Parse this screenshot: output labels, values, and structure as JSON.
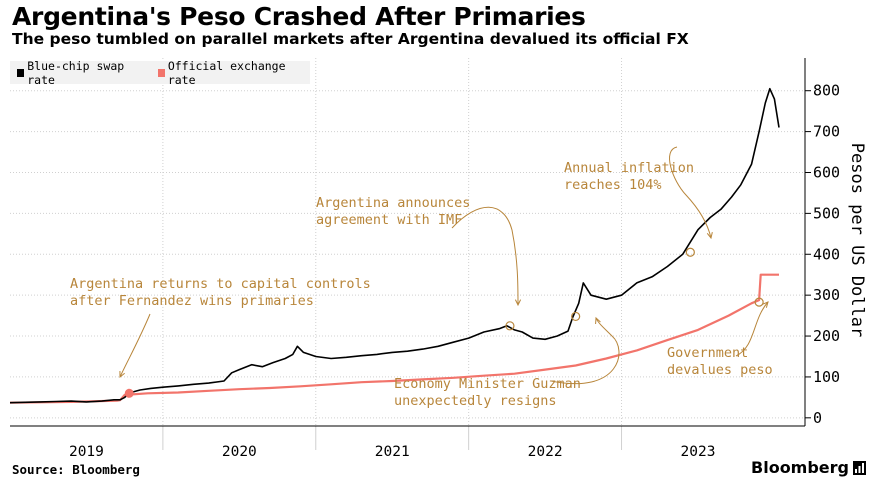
{
  "header": {
    "title": "Argentina's Peso Crashed After Primaries",
    "subtitle": "The peso tumbled on parallel markets after Argentina devalued its official FX"
  },
  "footer": {
    "source": "Source: Bloomberg",
    "brand": "Bloomberg"
  },
  "colors": {
    "blue_chip": "#000000",
    "official": "#f2746b",
    "annotation": "#b8863b",
    "grid": "#d0d0d0"
  },
  "chart_data": {
    "type": "line",
    "title": "Argentina's Peso Crashed After Primaries",
    "subtitle": "The peso tumbled on parallel markets after Argentina devalued its official FX",
    "xlabel": "",
    "ylabel": "Pesos per US Dollar",
    "xlim": [
      2018.5,
      2023.7
    ],
    "ylim": [
      -20,
      880
    ],
    "yticks": [
      0,
      100,
      200,
      300,
      400,
      500,
      600,
      700,
      800
    ],
    "xticks": [
      "2019",
      "2020",
      "2021",
      "2022",
      "2023"
    ],
    "grid": true,
    "legend_position": "top-left",
    "series": [
      {
        "name": "Blue-chip swap rate",
        "color": "#000000",
        "points": [
          [
            2018.5,
            37
          ],
          [
            2018.6,
            38
          ],
          [
            2018.7,
            39
          ],
          [
            2018.8,
            40
          ],
          [
            2018.9,
            41
          ],
          [
            2019.0,
            39
          ],
          [
            2019.1,
            41
          ],
          [
            2019.18,
            44
          ],
          [
            2019.22,
            44
          ],
          [
            2019.25,
            50
          ],
          [
            2019.28,
            60
          ],
          [
            2019.3,
            63
          ],
          [
            2019.35,
            68
          ],
          [
            2019.42,
            72
          ],
          [
            2019.5,
            75
          ],
          [
            2019.6,
            78
          ],
          [
            2019.7,
            82
          ],
          [
            2019.8,
            85
          ],
          [
            2019.9,
            90
          ],
          [
            2019.95,
            110
          ],
          [
            2020.0,
            118
          ],
          [
            2020.08,
            130
          ],
          [
            2020.15,
            125
          ],
          [
            2020.22,
            135
          ],
          [
            2020.3,
            145
          ],
          [
            2020.35,
            155
          ],
          [
            2020.38,
            175
          ],
          [
            2020.42,
            160
          ],
          [
            2020.5,
            150
          ],
          [
            2020.6,
            145
          ],
          [
            2020.7,
            148
          ],
          [
            2020.8,
            152
          ],
          [
            2020.9,
            155
          ],
          [
            2021.0,
            160
          ],
          [
            2021.1,
            163
          ],
          [
            2021.2,
            168
          ],
          [
            2021.3,
            175
          ],
          [
            2021.4,
            185
          ],
          [
            2021.5,
            195
          ],
          [
            2021.6,
            210
          ],
          [
            2021.7,
            218
          ],
          [
            2021.75,
            225
          ],
          [
            2021.8,
            215
          ],
          [
            2021.85,
            210
          ],
          [
            2021.92,
            195
          ],
          [
            2022.0,
            192
          ],
          [
            2022.08,
            200
          ],
          [
            2022.15,
            212
          ],
          [
            2022.18,
            245
          ],
          [
            2022.22,
            280
          ],
          [
            2022.25,
            330
          ],
          [
            2022.3,
            300
          ],
          [
            2022.4,
            290
          ],
          [
            2022.5,
            300
          ],
          [
            2022.6,
            330
          ],
          [
            2022.7,
            345
          ],
          [
            2022.8,
            370
          ],
          [
            2022.9,
            400
          ],
          [
            2023.0,
            460
          ],
          [
            2023.08,
            490
          ],
          [
            2023.15,
            510
          ],
          [
            2023.22,
            540
          ],
          [
            2023.28,
            570
          ],
          [
            2023.35,
            620
          ],
          [
            2023.4,
            700
          ],
          [
            2023.44,
            770
          ],
          [
            2023.47,
            805
          ],
          [
            2023.5,
            780
          ],
          [
            2023.53,
            710
          ]
        ]
      },
      {
        "name": "Official exchange rate",
        "color": "#f2746b",
        "points": [
          [
            2018.5,
            37
          ],
          [
            2018.7,
            38
          ],
          [
            2018.9,
            39
          ],
          [
            2019.0,
            40
          ],
          [
            2019.2,
            42
          ],
          [
            2019.22,
            43
          ],
          [
            2019.25,
            56
          ],
          [
            2019.4,
            60
          ],
          [
            2019.6,
            62
          ],
          [
            2019.8,
            66
          ],
          [
            2020.0,
            70
          ],
          [
            2020.2,
            73
          ],
          [
            2020.4,
            77
          ],
          [
            2020.6,
            82
          ],
          [
            2020.8,
            87
          ],
          [
            2021.0,
            90
          ],
          [
            2021.2,
            94
          ],
          [
            2021.4,
            98
          ],
          [
            2021.6,
            103
          ],
          [
            2021.8,
            108
          ],
          [
            2022.0,
            118
          ],
          [
            2022.2,
            128
          ],
          [
            2022.4,
            145
          ],
          [
            2022.6,
            165
          ],
          [
            2022.8,
            190
          ],
          [
            2023.0,
            215
          ],
          [
            2023.2,
            250
          ],
          [
            2023.35,
            280
          ],
          [
            2023.4,
            288
          ],
          [
            2023.41,
            350
          ],
          [
            2023.53,
            350
          ]
        ]
      }
    ],
    "highlights": [
      {
        "series": "Official exchange rate",
        "x": 2019.28,
        "y": 60
      },
      {
        "series": "Blue-chip swap rate",
        "x": 2021.77,
        "y": 225
      },
      {
        "series": "Blue-chip swap rate",
        "x": 2022.2,
        "y": 248
      },
      {
        "series": "Blue-chip swap rate",
        "x": 2022.95,
        "y": 405
      },
      {
        "series": "Official exchange rate",
        "x": 2023.4,
        "y": 283
      }
    ],
    "annotations": [
      {
        "text": [
          "Argentina returns to capital controls",
          "after Fernandez wins primaries"
        ]
      },
      {
        "text": [
          "Argentina announces",
          "agreement with IMF"
        ]
      },
      {
        "text": [
          "Annual inflation",
          "reaches 104%"
        ]
      },
      {
        "text": [
          "Economy Minister Guzman",
          "unexpectedly resigns"
        ]
      },
      {
        "text": [
          "Government",
          "devalues peso"
        ]
      }
    ]
  }
}
